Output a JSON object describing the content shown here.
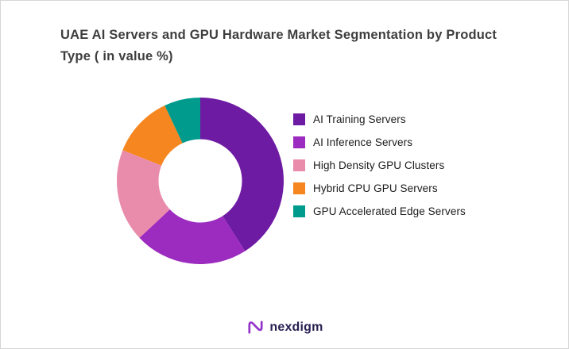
{
  "chart_data": {
    "type": "pie",
    "subtype": "donut",
    "title": "UAE AI Servers and GPU Hardware Market Segmentation by Product Type ( in value %)",
    "categories": [
      "AI Training Servers",
      "AI Inference Servers",
      "High Density GPU Clusters",
      "Hybrid CPU GPU Servers",
      "GPU Accelerated Edge Servers"
    ],
    "values": [
      41,
      22,
      18,
      12,
      7
    ],
    "colors": [
      "#6e1ba3",
      "#9c2bbf",
      "#e98cab",
      "#f6861f",
      "#009b8c"
    ],
    "legend_position": "right",
    "start_angle_deg": 0,
    "direction": "clockwise",
    "inner_radius_ratio": 0.5
  },
  "footer": {
    "logo_text": "nexdigm"
  },
  "brand": {
    "logo_purple": "#9333c9",
    "logo_text_color": "#2a2052"
  }
}
